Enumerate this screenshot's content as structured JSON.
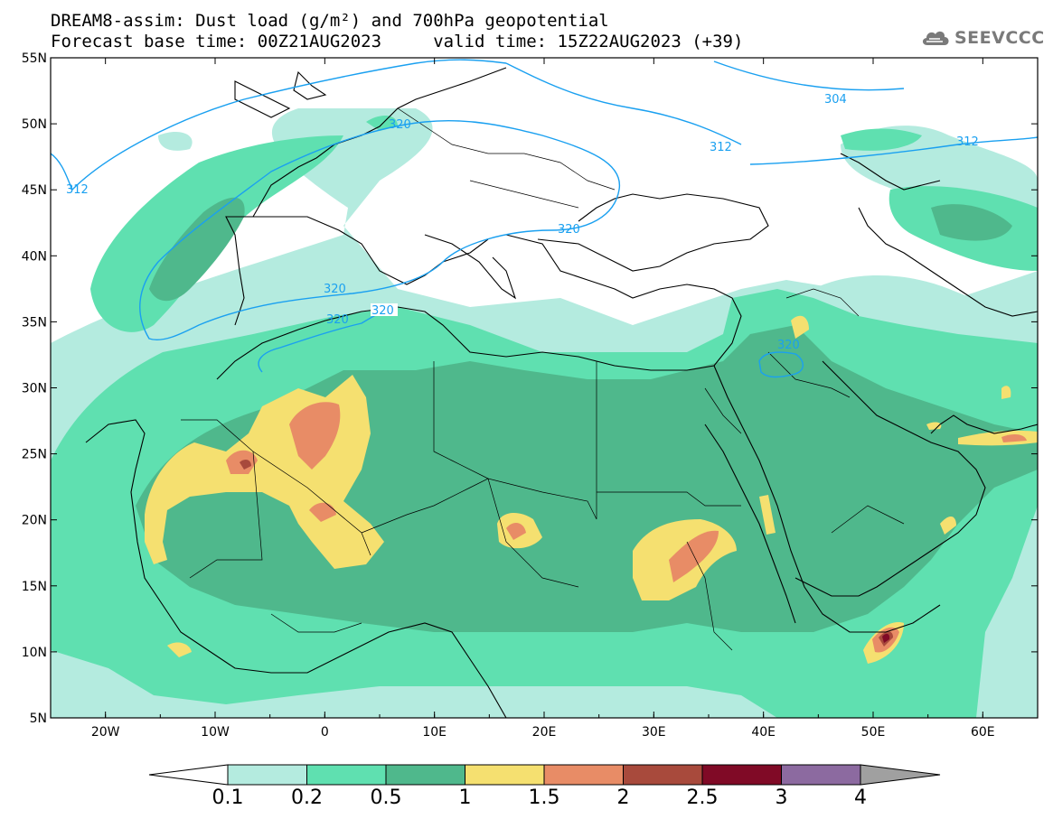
{
  "title": {
    "line1": "DREAM8-assim: Dust load (g/m²) and 700hPa geopotential",
    "line2": "Forecast base time: 00Z21AUG2023     valid time: 15Z22AUG2023 (+39)"
  },
  "logo": {
    "text": "SEEVCCC",
    "icon": "cloud-icon"
  },
  "map": {
    "lon_range": [
      -25,
      65
    ],
    "lat_range": [
      5,
      55
    ],
    "lon_ticks": [
      {
        "value": -20,
        "label": "20W"
      },
      {
        "value": -10,
        "label": "10W"
      },
      {
        "value": 0,
        "label": "0"
      },
      {
        "value": 10,
        "label": "10E"
      },
      {
        "value": 20,
        "label": "20E"
      },
      {
        "value": 30,
        "label": "30E"
      },
      {
        "value": 40,
        "label": "40E"
      },
      {
        "value": 50,
        "label": "50E"
      },
      {
        "value": 60,
        "label": "60E"
      }
    ],
    "lat_ticks": [
      {
        "value": 55,
        "label": "55N"
      },
      {
        "value": 50,
        "label": "50N"
      },
      {
        "value": 45,
        "label": "45N"
      },
      {
        "value": 40,
        "label": "40N"
      },
      {
        "value": 35,
        "label": "35N"
      },
      {
        "value": 30,
        "label": "30N"
      },
      {
        "value": 25,
        "label": "25N"
      },
      {
        "value": 20,
        "label": "20N"
      },
      {
        "value": 15,
        "label": "15N"
      },
      {
        "value": 10,
        "label": "10N"
      },
      {
        "value": 5,
        "label": "5N"
      }
    ],
    "contour_labels": [
      "312",
      "312",
      "304",
      "312",
      "320",
      "320",
      "320",
      "320",
      "320"
    ]
  },
  "colorbar": {
    "ticks": [
      "0.1",
      "0.2",
      "0.5",
      "1",
      "1.5",
      "2",
      "2.5",
      "3",
      "4"
    ],
    "colors": [
      "#b4ebdf",
      "#5fe0b0",
      "#4fb88c",
      "#f5e070",
      "#e88c66",
      "#a84a3c",
      "#800a26",
      "#8c6aa0"
    ],
    "under_color": "#ffffff",
    "over_color": "#a0a0a0"
  }
}
